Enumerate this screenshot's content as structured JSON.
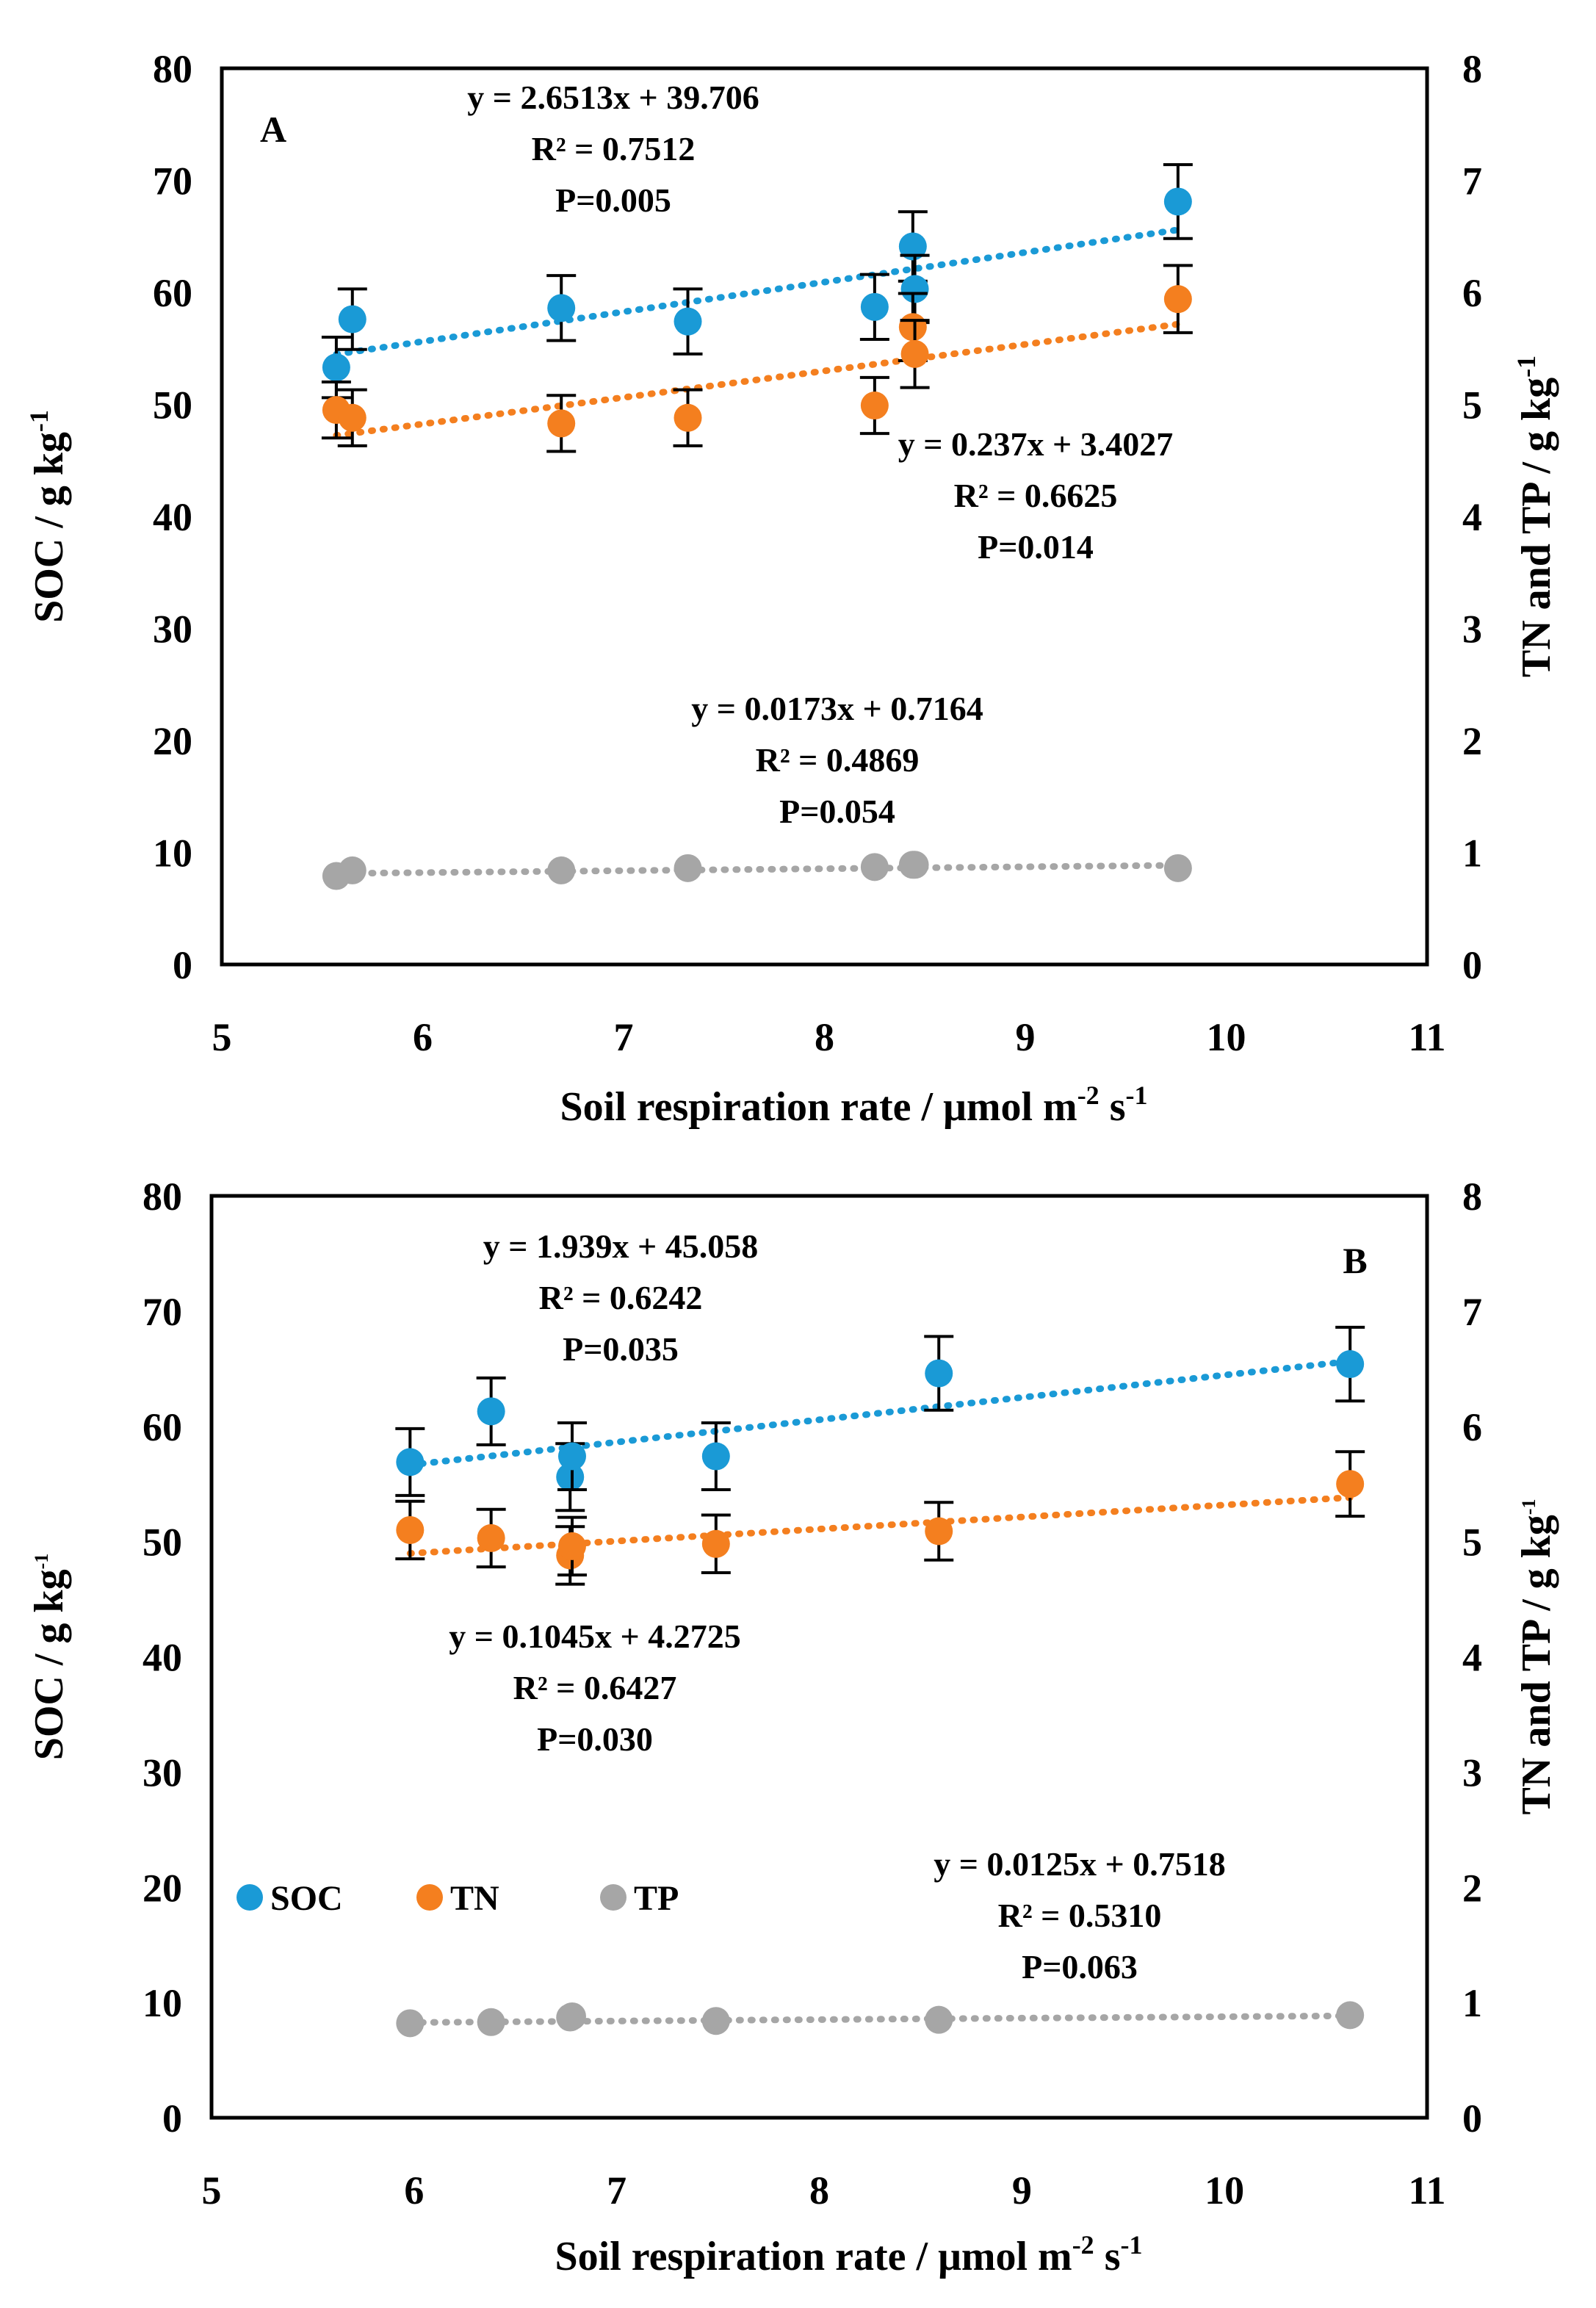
{
  "colors": {
    "SOC": "#1a9ad6",
    "TN": "#f47f1f",
    "TP": "#a6a6a6",
    "errorbar": "#000000",
    "frame": "#000000"
  },
  "legend": {
    "items": [
      "SOC",
      "TN",
      "TP"
    ],
    "placement": "panel B, left middle"
  },
  "chart_data": [
    {
      "type": "scatter",
      "panel": "A",
      "xlabel": "Soil respiration rate / μmol m",
      "xlabel_sup1": "-2",
      "xlabel_mid": " s",
      "xlabel_sup2": "-1",
      "ylabel": "SOC / g kg",
      "ylabel_sup": "-1",
      "y2label": "TN and TP / g kg",
      "y2label_sup": "-1",
      "xlim": [
        5,
        11
      ],
      "ylim": [
        0,
        80
      ],
      "y2lim": [
        0,
        8
      ],
      "x_ticks": [
        5,
        6,
        7,
        8,
        9,
        10,
        11
      ],
      "y_ticks": [
        0,
        10,
        20,
        30,
        40,
        50,
        60,
        70,
        80
      ],
      "y2_ticks": [
        0,
        1,
        2,
        3,
        4,
        5,
        6,
        7,
        8
      ],
      "series": [
        {
          "name": "SOC",
          "axis": "left",
          "x": [
            5.57,
            5.65,
            6.69,
            7.32,
            8.25,
            8.44,
            8.45,
            9.76
          ],
          "y": [
            53.3,
            57.6,
            58.6,
            57.4,
            58.7,
            64.1,
            60.3,
            68.1
          ],
          "err": [
            2.7,
            2.7,
            2.9,
            2.9,
            2.9,
            3.1,
            3.0,
            3.3
          ],
          "trend": {
            "slope": 2.6513,
            "intercept": 39.706,
            "x0": 5.57,
            "x1": 9.76
          }
        },
        {
          "name": "TN",
          "axis": "right",
          "x": [
            5.57,
            5.65,
            6.69,
            7.32,
            8.25,
            8.44,
            8.45,
            9.76
          ],
          "y": [
            4.95,
            4.88,
            4.83,
            4.88,
            4.99,
            5.69,
            5.45,
            5.94
          ],
          "err": [
            0.25,
            0.25,
            0.25,
            0.25,
            0.25,
            0.3,
            0.3,
            0.3
          ],
          "trend": {
            "slope": 0.237,
            "intercept": 3.4027,
            "x0": 5.57,
            "x1": 9.76
          }
        },
        {
          "name": "TP",
          "axis": "right",
          "x": [
            5.57,
            5.65,
            6.69,
            7.32,
            8.25,
            8.44,
            8.45,
            9.76
          ],
          "y": [
            0.79,
            0.84,
            0.84,
            0.86,
            0.87,
            0.89,
            0.89,
            0.86
          ],
          "err": [],
          "trend": {
            "slope": 0.0173,
            "intercept": 0.7164,
            "x0": 5.57,
            "x1": 9.76
          }
        }
      ],
      "annotations": [
        {
          "name": "soc-equation",
          "lines": [
            "y = 2.6513x + 39.706",
            "R² = 0.7512",
            "P=0.005"
          ]
        },
        {
          "name": "tn-equation",
          "lines": [
            "y = 0.237x + 3.4027",
            "R² = 0.6625",
            "P=0.014"
          ]
        },
        {
          "name": "tp-equation",
          "lines": [
            "y = 0.0173x + 0.7164",
            "R² = 0.4869",
            "P=0.054"
          ]
        }
      ]
    },
    {
      "type": "scatter",
      "panel": "B",
      "xlabel": "Soil respiration rate / μmol m",
      "xlabel_sup1": "-2",
      "xlabel_mid": " s",
      "xlabel_sup2": "-1",
      "ylabel": "SOC / g kg",
      "ylabel_sup": "-1",
      "y2label": "TN and TP / g kg",
      "y2label_sup": "-1",
      "xlim": [
        5,
        11
      ],
      "ylim": [
        0,
        80
      ],
      "y2lim": [
        0,
        8
      ],
      "x_ticks": [
        5,
        6,
        7,
        8,
        9,
        10,
        11
      ],
      "y_ticks": [
        0,
        10,
        20,
        30,
        40,
        50,
        60,
        70,
        80
      ],
      "y2_ticks": [
        0,
        1,
        2,
        3,
        4,
        5,
        6,
        7,
        8
      ],
      "series": [
        {
          "name": "SOC",
          "axis": "left",
          "x": [
            5.98,
            6.38,
            6.77,
            6.78,
            7.49,
            8.59,
            10.62
          ],
          "y": [
            56.9,
            61.3,
            55.6,
            57.4,
            57.4,
            64.6,
            65.4
          ],
          "err": [
            2.9,
            2.9,
            2.9,
            2.9,
            2.9,
            3.2,
            3.2
          ],
          "trend": {
            "slope": 1.939,
            "intercept": 45.058,
            "x0": 5.98,
            "x1": 10.62
          }
        },
        {
          "name": "TN",
          "axis": "right",
          "x": [
            5.98,
            6.38,
            6.77,
            6.78,
            7.49,
            8.59,
            10.62
          ],
          "y": [
            5.1,
            5.03,
            4.88,
            4.96,
            4.98,
            5.09,
            5.5
          ],
          "err": [
            0.25,
            0.25,
            0.25,
            0.25,
            0.25,
            0.25,
            0.28
          ],
          "trend": {
            "slope": 0.1045,
            "intercept": 4.2725,
            "x0": 5.98,
            "x1": 10.62
          }
        },
        {
          "name": "TP",
          "axis": "right",
          "x": [
            5.98,
            6.38,
            6.77,
            6.78,
            7.49,
            8.59,
            10.62
          ],
          "y": [
            0.82,
            0.83,
            0.87,
            0.88,
            0.84,
            0.85,
            0.89
          ],
          "err": [],
          "trend": {
            "slope": 0.0125,
            "intercept": 0.7518,
            "x0": 5.98,
            "x1": 10.62
          }
        }
      ],
      "annotations": [
        {
          "name": "soc-equation",
          "lines": [
            "y = 1.939x + 45.058",
            "R² = 0.6242",
            "P=0.035"
          ]
        },
        {
          "name": "tn-equation",
          "lines": [
            "y = 0.1045x + 4.2725",
            "R² = 0.6427",
            "P=0.030"
          ]
        },
        {
          "name": "tp-equation",
          "lines": [
            "y = 0.0125x + 0.7518",
            "R² = 0.5310",
            "P=0.063"
          ]
        }
      ]
    }
  ]
}
